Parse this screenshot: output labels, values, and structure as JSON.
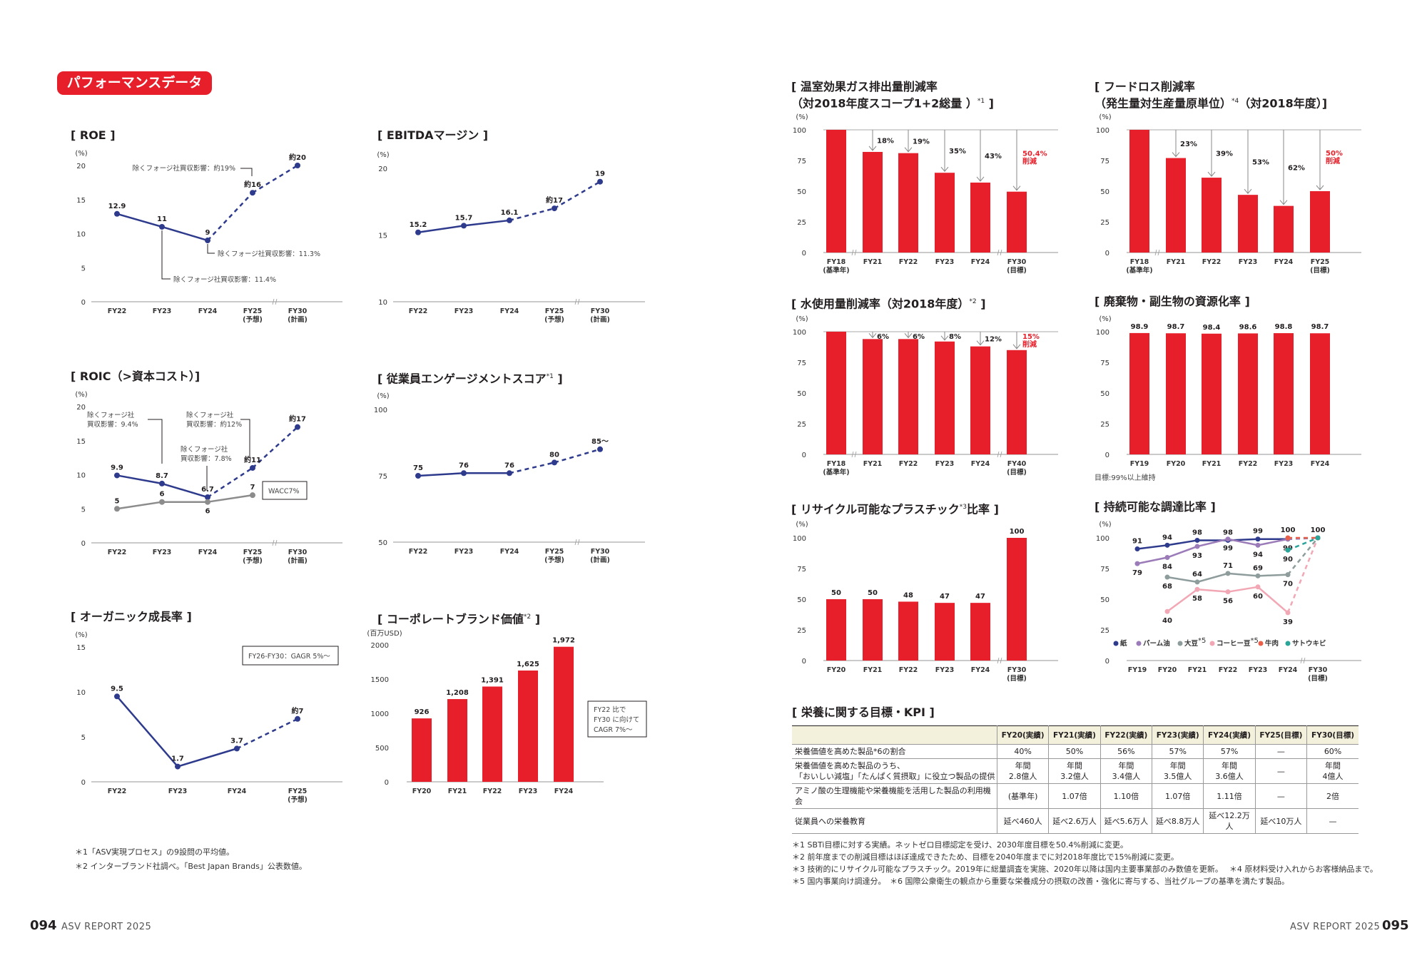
{
  "header": {
    "badge": "パフォーマンスデータ"
  },
  "chart_data": [
    {
      "id": "roe",
      "type": "line",
      "title": "[ ROE ]",
      "unit": "(%)",
      "ylim": [
        0,
        20
      ],
      "yticks": [
        0,
        5,
        10,
        15,
        20
      ],
      "categories": [
        [
          "FY22"
        ],
        [
          "FY23"
        ],
        [
          "FY24"
        ],
        [
          "FY25",
          "(予想)"
        ],
        [
          "FY30",
          "(計画)"
        ]
      ],
      "series": [
        {
          "values": [
            12.9,
            11,
            9,
            16,
            20
          ],
          "labels": [
            "12.9",
            "11",
            "9",
            "約16",
            "約20"
          ],
          "dashed_from": 2,
          "color": "#2e3a8c"
        }
      ],
      "annotations": [
        {
          "lines": [
            "除くフォージ社買収影響：約19%"
          ]
        },
        {
          "lines": [
            "除くフォージ社買収影響：11.3%"
          ]
        },
        {
          "lines": [
            "除くフォージ社買収影響：11.4%"
          ]
        }
      ]
    },
    {
      "id": "ebitda",
      "type": "line",
      "title": "[ EBITDAマージン ]",
      "unit": "(%)",
      "ylim": [
        10,
        20
      ],
      "yticks": [
        10,
        15,
        20
      ],
      "categories": [
        [
          "FY22"
        ],
        [
          "FY23"
        ],
        [
          "FY24"
        ],
        [
          "FY25",
          "(予想)"
        ],
        [
          "FY30",
          "(計画)"
        ]
      ],
      "series": [
        {
          "values": [
            15.2,
            15.7,
            16.1,
            17,
            19
          ],
          "labels": [
            "15.2",
            "15.7",
            "16.1",
            "約17",
            "19"
          ],
          "dashed_from": 2,
          "color": "#2e3a8c"
        }
      ]
    },
    {
      "id": "roic",
      "type": "line",
      "title": "[ ROIC（>資本コスト）]",
      "unit": "(%)",
      "ylim": [
        0,
        20
      ],
      "yticks": [
        0,
        5,
        10,
        15,
        20
      ],
      "categories": [
        [
          "FY22"
        ],
        [
          "FY23"
        ],
        [
          "FY24"
        ],
        [
          "FY25",
          "(予想)"
        ],
        [
          "FY30",
          "(計画)"
        ]
      ],
      "series": [
        {
          "name": "ROIC",
          "values": [
            9.9,
            8.7,
            6.7,
            11,
            17
          ],
          "labels": [
            "9.9",
            "8.7",
            "6.7",
            "約11",
            "約17"
          ],
          "dashed_from": 2,
          "color": "#2e3a8c"
        },
        {
          "name": "WACC",
          "values": [
            5,
            6,
            6,
            7,
            null
          ],
          "labels": [
            "5",
            "6",
            "6",
            "7",
            null
          ],
          "dashed_from": null,
          "color": "#8c8c8c"
        }
      ],
      "annotations": [
        {
          "lines": [
            "除くフォージ社",
            "買収影響：9.4%"
          ]
        },
        {
          "lines": [
            "除くフォージ社",
            "買収影響：7.8%"
          ]
        },
        {
          "lines": [
            "除くフォージ社",
            "買収影響：約12%"
          ]
        }
      ],
      "note_box": {
        "lines": [
          "WACC7%"
        ]
      }
    },
    {
      "id": "engagement",
      "type": "line",
      "title": "[ 従業員エンゲージメントスコア",
      "title_note": "*1",
      "title_close": " ]",
      "unit": "(%)",
      "ylim": [
        50,
        100
      ],
      "yticks": [
        50,
        75,
        100
      ],
      "categories": [
        [
          "FY22"
        ],
        [
          "FY23"
        ],
        [
          "FY24"
        ],
        [
          "FY25",
          "(予想)"
        ],
        [
          "FY30",
          "(計画)"
        ]
      ],
      "series": [
        {
          "values": [
            75,
            76,
            76,
            80,
            85
          ],
          "labels": [
            "75",
            "76",
            "76",
            "80",
            "85〜"
          ],
          "dashed_from": 2,
          "color": "#2e3a8c"
        }
      ]
    },
    {
      "id": "organic",
      "type": "line",
      "title": "[ オーガニック成長率 ]",
      "unit": "(%)",
      "ylim": [
        0,
        15
      ],
      "yticks": [
        0,
        5,
        10,
        15
      ],
      "categories": [
        [
          "FY22"
        ],
        [
          "FY23"
        ],
        [
          "FY24"
        ],
        [
          "FY25",
          "(予想)"
        ]
      ],
      "series": [
        {
          "values": [
            9.5,
            1.7,
            3.7,
            7
          ],
          "labels": [
            "9.5",
            "1.7",
            "3.7",
            "約7"
          ],
          "dashed_from": 2,
          "color": "#2e3a8c"
        }
      ],
      "note_box": {
        "lines": [
          "FY26-FY30：GAGR 5%〜"
        ]
      }
    },
    {
      "id": "brand",
      "type": "bar",
      "title": "[ コーポレートブランド価値",
      "title_note": "*2",
      "title_close": " ]",
      "unit": "(百万USD)",
      "ylim": [
        0,
        2000
      ],
      "yticks": [
        0,
        500,
        1000,
        1500,
        2000
      ],
      "categories": [
        [
          "FY20"
        ],
        [
          "FY21"
        ],
        [
          "FY22"
        ],
        [
          "FY23"
        ],
        [
          "FY24"
        ]
      ],
      "series": [
        {
          "values": [
            926,
            1208,
            1391,
            1625,
            1972
          ],
          "labels": [
            "926",
            "1,208",
            "1,391",
            "1,625",
            "1,972"
          ],
          "color": "#e71f2a"
        }
      ],
      "note_box": {
        "lines": [
          "FY22 比で",
          "FY30 に向けて",
          "CAGR 7%〜"
        ]
      }
    },
    {
      "id": "ghg",
      "type": "bar",
      "title": "[ 温室効果ガス排出量削減率",
      "title2": "（対2018年度スコープ1+2総量 ）",
      "title_note": "*1",
      "title_close": " ]",
      "unit": "(%)",
      "ylim": [
        0,
        100
      ],
      "yticks": [
        0,
        25,
        50,
        75,
        100
      ],
      "reference_line": 100,
      "categories": [
        [
          "FY18",
          "(基準年)"
        ],
        [
          "FY21"
        ],
        [
          "FY22"
        ],
        [
          "FY23"
        ],
        [
          "FY24"
        ],
        [
          "FY30",
          "(目標)"
        ]
      ],
      "series": [
        {
          "values": [
            100,
            82,
            81,
            65,
            57,
            49.6
          ],
          "color": "#e71f2a"
        }
      ],
      "reductions": [
        null,
        "18%",
        "19%",
        "35%",
        "43%",
        null
      ],
      "target": {
        "index": 5,
        "lines": [
          "50.4%",
          "削減"
        ],
        "color": "#e71f2a"
      }
    },
    {
      "id": "foodloss",
      "type": "bar",
      "title": "[ フードロス削減率",
      "title2": "（発生量対生産量原単位）",
      "title_note": "*4",
      "title_close": "（対2018年度）]",
      "unit": "(%)",
      "ylim": [
        0,
        100
      ],
      "yticks": [
        0,
        25,
        50,
        75,
        100
      ],
      "reference_line": 100,
      "categories": [
        [
          "FY18",
          "(基準年)"
        ],
        [
          "FY21"
        ],
        [
          "FY22"
        ],
        [
          "FY23"
        ],
        [
          "FY24"
        ],
        [
          "FY25",
          "(目標)"
        ]
      ],
      "series": [
        {
          "values": [
            100,
            77,
            61,
            47,
            38,
            50
          ],
          "color": "#e71f2a"
        }
      ],
      "reductions": [
        null,
        "23%",
        "39%",
        "53%",
        "62%",
        null
      ],
      "target": {
        "index": 5,
        "lines": [
          "50%",
          "削減"
        ],
        "color": "#e71f2a"
      }
    },
    {
      "id": "water",
      "type": "bar",
      "title": "[ 水使用量削減率（対2018年度）",
      "title_note": "*2",
      "title_close": " ]",
      "unit": "(%)",
      "ylim": [
        0,
        100
      ],
      "yticks": [
        0,
        25,
        50,
        75,
        100
      ],
      "reference_line": 100,
      "categories": [
        [
          "FY18",
          "(基準年)"
        ],
        [
          "FY21"
        ],
        [
          "FY22"
        ],
        [
          "FY23"
        ],
        [
          "FY24"
        ],
        [
          "FY40",
          "(目標)"
        ]
      ],
      "series": [
        {
          "values": [
            100,
            94,
            94,
            92,
            88,
            85
          ],
          "color": "#e71f2a"
        }
      ],
      "reductions": [
        null,
        "6%",
        "6%",
        "8%",
        "12%",
        null
      ],
      "target": {
        "index": 5,
        "lines": [
          "15%",
          "削減"
        ],
        "color": "#e71f2a"
      }
    },
    {
      "id": "waste",
      "type": "bar",
      "title": "[ 廃棄物・副生物の資源化率 ]",
      "unit": "(%)",
      "ylim": [
        0,
        100
      ],
      "yticks": [
        0,
        25,
        50,
        75,
        100
      ],
      "categories": [
        [
          "FY19"
        ],
        [
          "FY20"
        ],
        [
          "FY21"
        ],
        [
          "FY22"
        ],
        [
          "FY23"
        ],
        [
          "FY24"
        ]
      ],
      "series": [
        {
          "values": [
            98.9,
            98.7,
            98.4,
            98.6,
            98.8,
            98.7
          ],
          "labels": [
            "98.9",
            "98.7",
            "98.4",
            "98.6",
            "98.8",
            "98.7"
          ],
          "color": "#e71f2a"
        }
      ],
      "goal_note": "目標:99%以上維持"
    },
    {
      "id": "plastic",
      "type": "bar",
      "title": "[ リサイクル可能なプラスチック",
      "title_note": "*3",
      "title_close": "比率 ]",
      "unit": "(%)",
      "ylim": [
        0,
        100
      ],
      "yticks": [
        0,
        25,
        50,
        75,
        100
      ],
      "categories": [
        [
          "FY20"
        ],
        [
          "FY21"
        ],
        [
          "FY22"
        ],
        [
          "FY23"
        ],
        [
          "FY24"
        ],
        [
          "FY30",
          "(目標)"
        ]
      ],
      "series": [
        {
          "values": [
            50,
            50,
            48,
            47,
            47,
            100
          ],
          "labels": [
            "50",
            "50",
            "48",
            "47",
            "47",
            "100"
          ],
          "color": "#e71f2a"
        }
      ]
    },
    {
      "id": "procurement",
      "type": "line",
      "title": "[ 持続可能な調達比率 ]",
      "unit": "(%)",
      "ylim": [
        0,
        100
      ],
      "yticks": [
        0,
        25,
        50,
        75,
        100
      ],
      "categories": [
        [
          "FY19"
        ],
        [
          "FY20"
        ],
        [
          "FY21"
        ],
        [
          "FY22"
        ],
        [
          "FY23"
        ],
        [
          "FY24"
        ],
        [
          "FY30",
          "(目標)"
        ]
      ],
      "legend": "bottom-left",
      "series": [
        {
          "name": "紙",
          "values": [
            91,
            94,
            98,
            98,
            99,
            99,
            100
          ],
          "labels": [
            "91",
            "94",
            "98",
            "98",
            "99",
            null,
            "100"
          ],
          "dashed_from": 5,
          "color": "#2e3a8c"
        },
        {
          "name": "パーム油",
          "values": [
            79,
            84,
            93,
            99,
            94,
            99,
            100
          ],
          "labels": [
            "79",
            "84",
            "93",
            "99",
            "94",
            "99",
            null
          ],
          "dashed_from": 5,
          "color": "#9b7bb8"
        },
        {
          "name": "大豆",
          "name_note": "*5",
          "values": [
            null,
            68,
            64,
            71,
            69,
            70,
            100
          ],
          "labels": [
            null,
            "68",
            "64",
            "71",
            "69",
            "70",
            null
          ],
          "dashed_from": 5,
          "color": "#8e9c9c"
        },
        {
          "name": "コーヒー豆",
          "name_note": "*5",
          "values": [
            null,
            40,
            58,
            56,
            60,
            39,
            100
          ],
          "labels": [
            null,
            "40",
            "58",
            "56",
            "60",
            "39",
            null
          ],
          "dashed_from": 5,
          "color": "#f2a7b5"
        },
        {
          "name": "牛肉",
          "values": [
            null,
            null,
            null,
            null,
            null,
            100,
            100
          ],
          "labels": [
            null,
            null,
            null,
            null,
            null,
            "100",
            null
          ],
          "dashed_from": 5,
          "color": "#e8604a"
        },
        {
          "name": "サトウキビ",
          "values": [
            null,
            null,
            null,
            null,
            null,
            90,
            100
          ],
          "labels": [
            null,
            null,
            null,
            null,
            null,
            "90",
            null
          ],
          "dashed_from": 5,
          "color": "#2aa59a"
        }
      ]
    }
  ],
  "nutrition_kpi": {
    "title": "[ 栄養に関する目標・KPI ]",
    "columns": [
      "",
      "FY20(実績)",
      "FY21(実績)",
      "FY22(実績)",
      "FY23(実績)",
      "FY24(実績)",
      "FY25(目標)",
      "FY30(目標)"
    ],
    "rows": [
      [
        "栄養価値を高めた製品*6の割合",
        "40%",
        "50%",
        "56%",
        "57%",
        "57%",
        "—",
        "60%"
      ],
      [
        "栄養価値を高めた製品のうち、\n「おいしい減塩」「たんぱく質摂取」に役立つ製品の提供",
        "年間\n2.8億人",
        "年間\n3.2億人",
        "年間\n3.4億人",
        "年間\n3.5億人",
        "年間\n3.6億人",
        "—",
        "年間\n4億人"
      ],
      [
        "アミノ酸の生理機能や栄養機能を活用した製品の利用機会",
        "(基準年)",
        "1.07倍",
        "1.10倍",
        "1.07倍",
        "1.11倍",
        "—",
        "2倍"
      ],
      [
        "従業員への栄養教育",
        "延べ460人",
        "延べ2.6万人",
        "延べ5.6万人",
        "延べ8.8万人",
        "延べ12.2万人",
        "延べ10万人",
        "—"
      ]
    ]
  },
  "footnotes_left": [
    "＊1「ASV実現プロセス」の9設問の平均値。",
    "＊2 インターブランド社調べ。「Best Japan Brands」公表数値。"
  ],
  "footnotes_right": [
    "＊1 SBTi目標に対する実績。ネットゼロ目標認定を受け、2030年度目標を50.4%削減に変更。",
    "＊2 前年度までの削減目標はほぼ達成できたため、目標を2040年度までに対2018年度比で15%削減に変更。",
    "＊3 技術的にリサイクル可能なプラスチック。2019年に総量調査を実施、2020年以降は国内主要事業部のみ数値を更新。　 ＊4 原材料受け入れからお客様納品まで。",
    "＊5 国内事業向け調達分。　＊6 国際公衆衛生の観点から重要な栄養成分の摂取の改善・強化に寄与する、当社グループの基準を満たす製品。"
  ],
  "footer": {
    "left_page": "094",
    "left_label": "ASV REPORT 2025",
    "right_label": "ASV REPORT 2025",
    "right_page": "095"
  }
}
